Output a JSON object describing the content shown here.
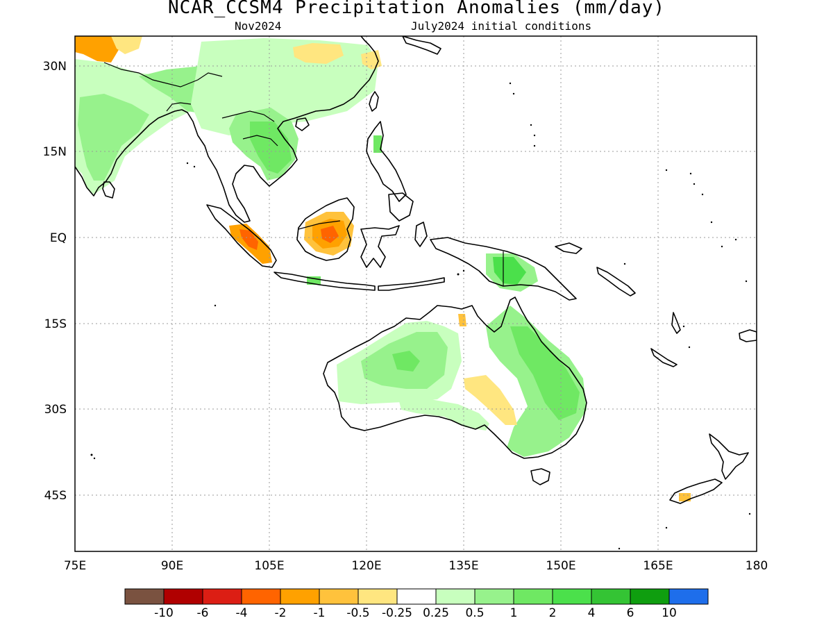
{
  "title": "NCAR_CCSM4 Precipitation Anomalies (mm/day)",
  "subtitle_left": "Nov2024",
  "subtitle_right": "July2024 initial conditions",
  "x_ticks": [
    "75E",
    "90E",
    "105E",
    "120E",
    "135E",
    "150E",
    "165E",
    "180"
  ],
  "y_ticks": [
    "30N",
    "15N",
    "EQ",
    "15S",
    "30S",
    "45S"
  ],
  "colorbar": {
    "colors": [
      "#7a5240",
      "#b00000",
      "#dc1e14",
      "#ff6400",
      "#ffa100",
      "#ffc23c",
      "#ffe680",
      "#ffffff",
      "#c8ffbe",
      "#97f28c",
      "#6fe863",
      "#4be04b",
      "#34c434",
      "#0f9e0f",
      "#1e6eeb"
    ],
    "labels": [
      "-10",
      "-6",
      "-4",
      "-2",
      "-1",
      "-0.5",
      "-0.25",
      "0.25",
      "0.5",
      "1",
      "2",
      "4",
      "6",
      "10"
    ]
  },
  "map": {
    "lon_range": [
      75,
      180
    ],
    "lat_range": [
      -55,
      35
    ],
    "projection": "lat-lon",
    "grid": "dotted",
    "regions": [
      "India",
      "Indochina",
      "South China",
      "Borneo",
      "Sumatra",
      "Java",
      "Philippines",
      "New Guinea",
      "Australia",
      "Tasmania",
      "New Zealand"
    ]
  }
}
